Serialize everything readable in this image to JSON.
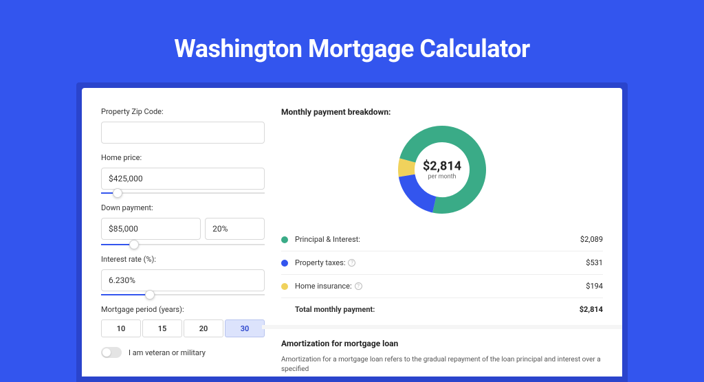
{
  "page": {
    "title": "Washington Mortgage Calculator",
    "background_color": "#3355ee",
    "card_wrap_color": "#2a44cc",
    "card_color": "#ffffff"
  },
  "form": {
    "zip": {
      "label": "Property Zip Code:",
      "value": ""
    },
    "home_price": {
      "label": "Home price:",
      "value": "$425,000",
      "slider_pct": 10
    },
    "down_payment": {
      "label": "Down payment:",
      "amount": "$85,000",
      "pct": "20%",
      "slider_pct": 20
    },
    "interest_rate": {
      "label": "Interest rate (%):",
      "value": "6.230%",
      "slider_pct": 30
    },
    "period": {
      "label": "Mortgage period (years):",
      "options": [
        "10",
        "15",
        "20",
        "30"
      ],
      "active_index": 3
    },
    "veteran": {
      "label": "I am veteran or military",
      "checked": false
    }
  },
  "breakdown": {
    "title": "Monthly payment breakdown:",
    "center_amount": "$2,814",
    "center_sub": "per month",
    "donut": {
      "slices": [
        {
          "name": "principal_interest",
          "value": 2089,
          "pct": 74.2,
          "color": "#3aab87"
        },
        {
          "name": "property_taxes",
          "value": 531,
          "pct": 18.9,
          "color": "#3355ee"
        },
        {
          "name": "home_insurance",
          "value": 194,
          "pct": 6.9,
          "color": "#f0d25c"
        }
      ],
      "stroke_width": 24,
      "radius": 52,
      "size": 130
    },
    "rows": [
      {
        "dot_color": "#3aab87",
        "label": "Principal & Interest:",
        "value": "$2,089",
        "info": false
      },
      {
        "dot_color": "#3355ee",
        "label": "Property taxes:",
        "value": "$531",
        "info": true
      },
      {
        "dot_color": "#f0d25c",
        "label": "Home insurance:",
        "value": "$194",
        "info": true
      }
    ],
    "total": {
      "label": "Total monthly payment:",
      "value": "$2,814"
    }
  },
  "amortization": {
    "title": "Amortization for mortgage loan",
    "text": "Amortization for a mortgage loan refers to the gradual repayment of the loan principal and interest over a specified"
  }
}
